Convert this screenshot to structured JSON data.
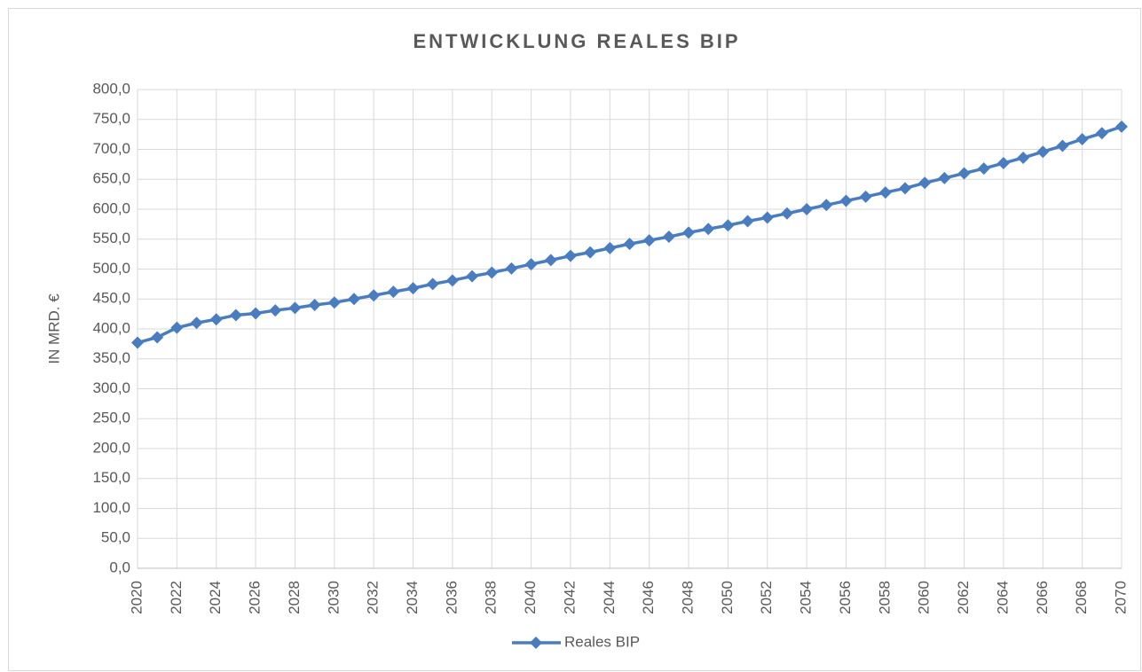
{
  "chart_data": {
    "type": "line",
    "title": "ENTWICKLUNG REALES BIP",
    "ylabel": "IN MRD. €",
    "categories": [
      "2020",
      null,
      "2022",
      null,
      "2024",
      null,
      "2026",
      null,
      "2028",
      null,
      "2030",
      null,
      "2032",
      null,
      "2034",
      null,
      "2036",
      null,
      "2038",
      null,
      "2040",
      null,
      "2042",
      null,
      "2044",
      null,
      "2046",
      null,
      "2048",
      null,
      "2050",
      null,
      "2052",
      null,
      "2054",
      null,
      "2056",
      null,
      "2058",
      null,
      "2060",
      null,
      "2062",
      null,
      "2064",
      null,
      "2066",
      null,
      "2068",
      null,
      "2070"
    ],
    "series": [
      {
        "name": "Reales BIP",
        "color": "#4a7dbf",
        "values": [
          377,
          386,
          402,
          410,
          416,
          423,
          426,
          431,
          435,
          440,
          444,
          450,
          456,
          462,
          468,
          475,
          481,
          488,
          494,
          501,
          508,
          515,
          522,
          528,
          535,
          542,
          548,
          554,
          561,
          567,
          573,
          580,
          586,
          593,
          600,
          607,
          614,
          621,
          628,
          635,
          644,
          652,
          660,
          668,
          677,
          686,
          696,
          706,
          717,
          727,
          738
        ]
      }
    ],
    "ylim": [
      0,
      800
    ],
    "yticks": [
      {
        "value": 0,
        "label": "0,0"
      },
      {
        "value": 50,
        "label": "50,0"
      },
      {
        "value": 100,
        "label": "100,0"
      },
      {
        "value": 150,
        "label": "150,0"
      },
      {
        "value": 200,
        "label": "200,0"
      },
      {
        "value": 250,
        "label": "250,0"
      },
      {
        "value": 300,
        "label": "300,0"
      },
      {
        "value": 350,
        "label": "350,0"
      },
      {
        "value": 400,
        "label": "400,0"
      },
      {
        "value": 450,
        "label": "450,0"
      },
      {
        "value": 500,
        "label": "500,0"
      },
      {
        "value": 550,
        "label": "550,0"
      },
      {
        "value": 600,
        "label": "600,0"
      },
      {
        "value": 650,
        "label": "650,0"
      },
      {
        "value": 700,
        "label": "700,0"
      },
      {
        "value": 750,
        "label": "750,0"
      },
      {
        "value": 800,
        "label": "800,0"
      }
    ],
    "grid": true,
    "legend": "bottom"
  }
}
